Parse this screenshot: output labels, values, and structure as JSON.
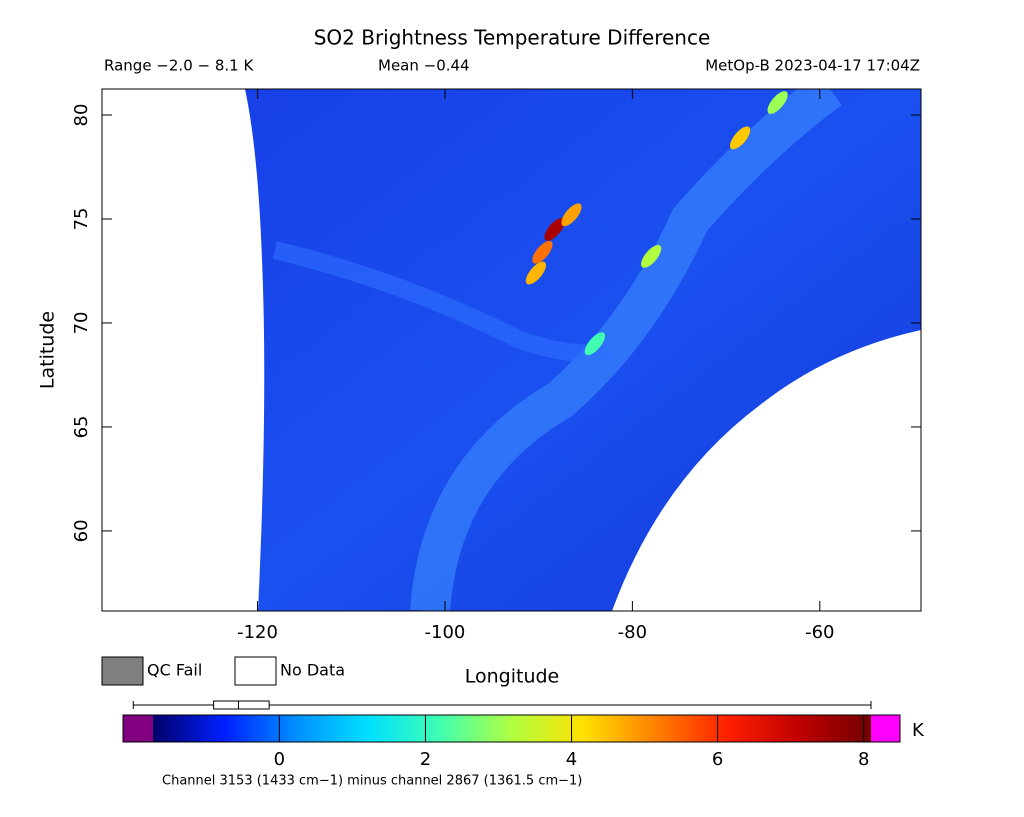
{
  "chart_data": {
    "type": "map",
    "title": "SO2 Brightness Temperature Difference",
    "range_label": "Range −2.0 − 8.1 K",
    "mean_label": "Mean −0.44",
    "source_label": "MetOp-B 2023-04-17 17:04Z",
    "xlabel": "Longitude",
    "ylabel": "Latitude",
    "xlim": [
      -136.6,
      -49.2
    ],
    "ylim": [
      56.15,
      81.25
    ],
    "xticks": [
      -120,
      -100,
      -80,
      -60
    ],
    "yticks": [
      60,
      65,
      70,
      75,
      80
    ],
    "legend": [
      {
        "name": "QC Fail",
        "color": "#808080"
      },
      {
        "name": "No Data",
        "color": "#ffffff"
      }
    ],
    "colorbar": {
      "unit": "K",
      "lim": [
        -1.73,
        8.1
      ],
      "ticks": [
        0,
        2,
        4,
        6,
        8
      ],
      "under_color": "#800080",
      "over_color": "#ff00ff",
      "colors": [
        "#00006a",
        "#0020ff",
        "#0090ff",
        "#00e0ff",
        "#40ffb0",
        "#b0ff40",
        "#ffe000",
        "#ff8000",
        "#ff2000",
        "#c00000",
        "#700000"
      ]
    },
    "summary": {
      "min": -2.0,
      "q1": -0.9,
      "median": -0.56,
      "q3": -0.14,
      "max": 8.1
    },
    "hotspots": [
      {
        "lon": -88.3,
        "lat": 74.5,
        "value": 7.4
      },
      {
        "lon": -89.6,
        "lat": 73.4,
        "value": 5.3
      },
      {
        "lon": -90.3,
        "lat": 72.4,
        "value": 4.6
      },
      {
        "lon": -86.5,
        "lat": 75.2,
        "value": 4.8
      },
      {
        "lon": -68.5,
        "lat": 78.9,
        "value": 4.4
      },
      {
        "lon": -64.5,
        "lat": 80.6,
        "value": 3.0
      },
      {
        "lon": -78.0,
        "lat": 73.2,
        "value": 3.2
      },
      {
        "lon": -84.0,
        "lat": 69.0,
        "value": 2.2
      }
    ],
    "footnote": "Channel 3153 (1433 cm−1) minus channel 2867 (1361.5 cm−1)"
  }
}
